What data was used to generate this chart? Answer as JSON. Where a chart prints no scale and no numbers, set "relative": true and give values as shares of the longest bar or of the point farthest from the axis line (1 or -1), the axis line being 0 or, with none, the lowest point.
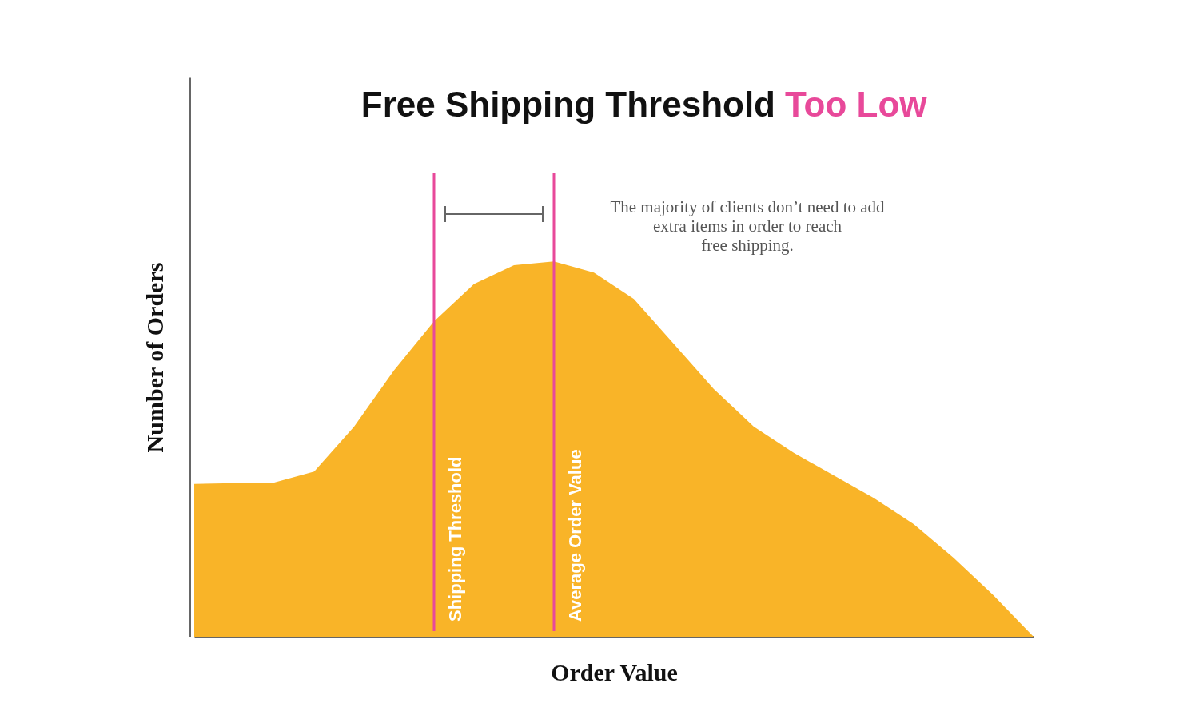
{
  "chart_data": {
    "type": "area",
    "relative": true,
    "title": "Free Shipping Threshold Too Low",
    "xlabel": "Order Value",
    "ylabel": "Number of Orders",
    "categories": [
      null,
      null,
      null,
      null,
      null,
      null,
      null,
      null,
      null,
      null,
      null,
      null,
      null,
      null,
      null,
      null,
      null,
      null,
      null,
      null,
      null,
      null
    ],
    "values": [
      0.407,
      0.409,
      0.411,
      0.44,
      0.56,
      0.71,
      0.84,
      0.94,
      0.99,
      1.0,
      0.97,
      0.9,
      0.78,
      0.66,
      0.56,
      0.49,
      0.43,
      0.37,
      0.3,
      0.21,
      0.11,
      0
    ],
    "color": "#f9b428",
    "tick_labels": false,
    "grid": false,
    "annotations": [
      "Shipping Threshold",
      "Average Order Value",
      "The majority of clients don’t need to add\nextra items in order to reach\nfree shipping."
    ]
  }
}
